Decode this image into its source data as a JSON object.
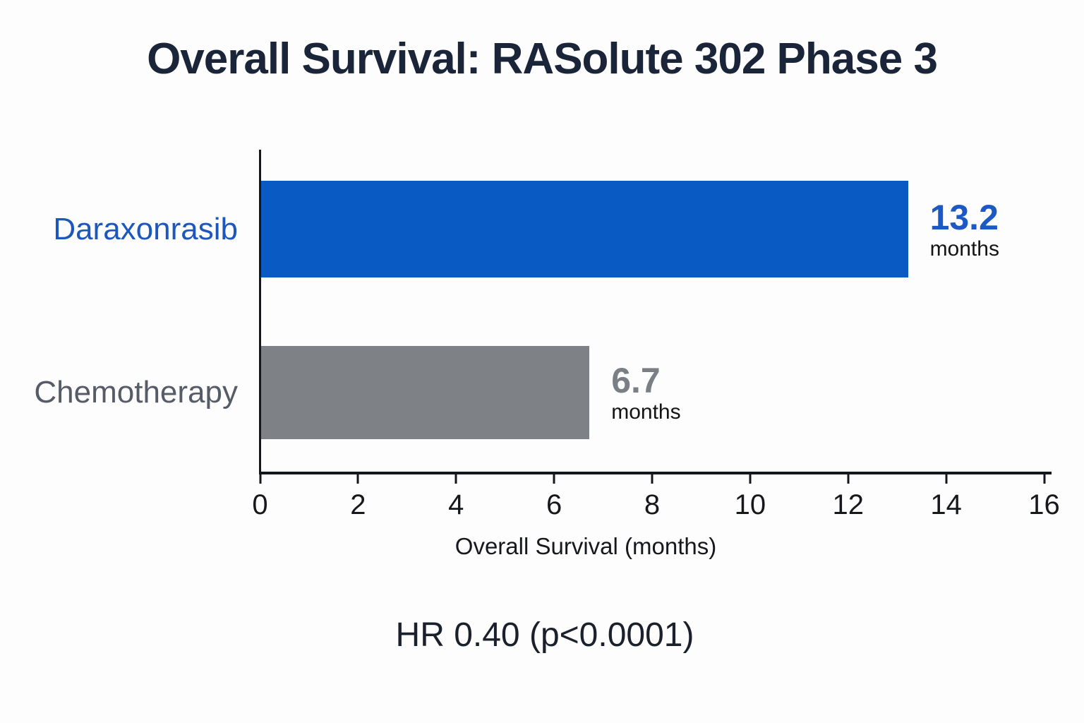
{
  "title": "Overall Survival: RASolute 302 Phase 3",
  "chart_data": {
    "type": "bar",
    "orientation": "horizontal",
    "title": "Overall Survival: RASolute 302 Phase 3",
    "categories": [
      "Daraxonrasib",
      "Chemotherapy"
    ],
    "values": [
      13.2,
      6.7
    ],
    "value_unit": "months",
    "value_display": [
      "13.2",
      "6.7"
    ],
    "xlabel": "Overall Survival (months)",
    "xlim": [
      0,
      16
    ],
    "xticks": [
      0,
      2,
      4,
      6,
      8,
      10,
      12,
      14,
      16
    ],
    "annotation": "HR 0.40 (p<0.0001)",
    "legend": "none",
    "grid": false,
    "colors": {
      "bar_fills": [
        "#0a5ac4",
        "#7e8287"
      ],
      "category_label_colors": [
        "#1d56bd",
        "#555c68"
      ],
      "value_number_colors": [
        "#1c59c5",
        "#7a7f86"
      ],
      "value_unit_color": "#141414",
      "axis_color": "#14161c",
      "title_color": "#1a2539",
      "annotation_color": "#1b212c",
      "background": "#fdfdfd"
    }
  }
}
